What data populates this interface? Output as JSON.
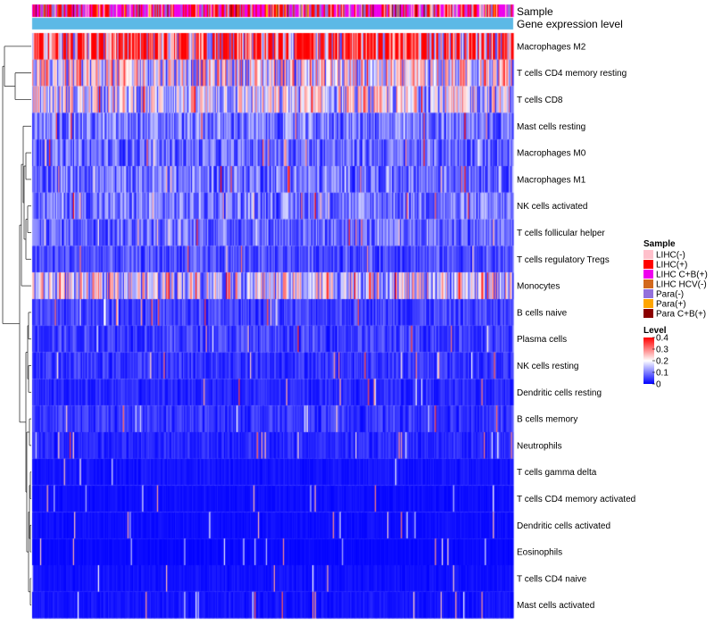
{
  "chart_data": {
    "type": "heatmap",
    "title": "",
    "n_samples": 424,
    "value_range": [
      0,
      0.4
    ],
    "annotation_tracks": [
      {
        "name": "Sample",
        "label": "Sample"
      },
      {
        "name": "Gene expression level",
        "label": "Gene expression level",
        "color": "#5cb9e6"
      }
    ],
    "rows": [
      {
        "name": "Macrophages M2",
        "mean": 0.36
      },
      {
        "name": "T cells CD4 memory resting",
        "mean": 0.19
      },
      {
        "name": "T cells CD8",
        "mean": 0.17
      },
      {
        "name": "Mast cells resting",
        "mean": 0.09
      },
      {
        "name": "Macrophages M0",
        "mean": 0.08
      },
      {
        "name": "Macrophages M1",
        "mean": 0.09
      },
      {
        "name": "NK cells activated",
        "mean": 0.09
      },
      {
        "name": "T cells follicular helper",
        "mean": 0.08
      },
      {
        "name": "T cells regulatory  Tregs",
        "mean": 0.06
      },
      {
        "name": "Monocytes",
        "mean": 0.17
      },
      {
        "name": "B cells naive",
        "mean": 0.05
      },
      {
        "name": "Plasma cells",
        "mean": 0.05
      },
      {
        "name": "NK cells resting",
        "mean": 0.04
      },
      {
        "name": "Dendritic cells resting",
        "mean": 0.03
      },
      {
        "name": "B cells memory",
        "mean": 0.04
      },
      {
        "name": "Neutrophils",
        "mean": 0.03
      },
      {
        "name": "T cells gamma delta",
        "mean": 0.015
      },
      {
        "name": "T cells CD4 memory activated",
        "mean": 0.01
      },
      {
        "name": "Dendritic cells activated",
        "mean": 0.01
      },
      {
        "name": "Eosinophils",
        "mean": 0.006
      },
      {
        "name": "T cells CD4 naive",
        "mean": 0.012
      },
      {
        "name": "Mast cells activated",
        "mean": 0.015
      }
    ],
    "legend": {
      "sample": {
        "title": "Sample",
        "entries": [
          {
            "label": "LIHC(-)",
            "color": "#ffc0cb"
          },
          {
            "label": "LIHC(+)",
            "color": "#ff0000"
          },
          {
            "label": "LIHC C+B(+)",
            "color": "#ee00ee"
          },
          {
            "label": "LIHC HCV(-)",
            "color": "#d2691e"
          },
          {
            "label": "Para(-)",
            "color": "#9370db"
          },
          {
            "label": "Para(+)",
            "color": "#ffa500"
          },
          {
            "label": "Para C+B(+)",
            "color": "#8b0000"
          }
        ]
      },
      "level": {
        "title": "Level",
        "ticks": [
          "0.4",
          "0.3",
          "0.2",
          "0.1",
          "0"
        ],
        "tick_values": [
          0.4,
          0.3,
          0.2,
          0.1,
          0
        ],
        "gradient": [
          "#ff0000",
          "#ffffff",
          "#0000ff"
        ]
      }
    }
  }
}
